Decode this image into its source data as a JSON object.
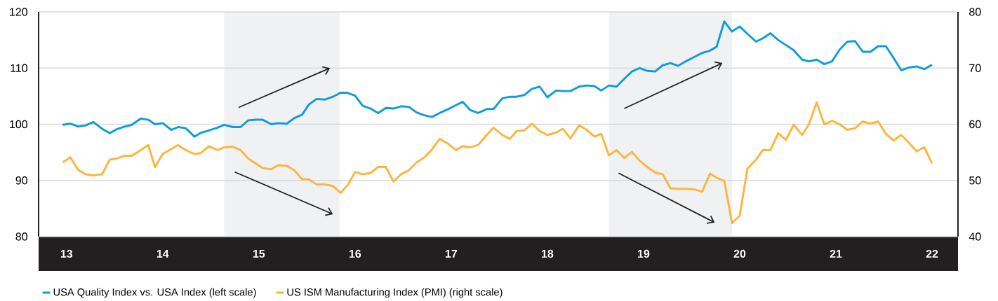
{
  "chart_data": {
    "type": "line",
    "xlim": [
      2012.71,
      2022.27
    ],
    "xticks": [
      {
        "value": 2013,
        "label": "13"
      },
      {
        "value": 2014,
        "label": "14"
      },
      {
        "value": 2015,
        "label": "15"
      },
      {
        "value": 2016,
        "label": "16"
      },
      {
        "value": 2017,
        "label": "17"
      },
      {
        "value": 2018,
        "label": "18"
      },
      {
        "value": 2019,
        "label": "19"
      },
      {
        "value": 2020,
        "label": "20"
      },
      {
        "value": 2021,
        "label": "21"
      },
      {
        "value": 2022,
        "label": "22"
      }
    ],
    "ylim": [
      80,
      120
    ],
    "yticks": [
      80,
      90,
      100,
      110,
      120
    ],
    "y2lim": [
      40,
      80
    ],
    "y2ticks": [
      40,
      50,
      60,
      70,
      80
    ],
    "grid": "y",
    "legend": "bottom",
    "bands": [
      {
        "axis": "x",
        "from": 2014.64,
        "to": 2015.84,
        "color": "#f0f1f3"
      },
      {
        "axis": "x",
        "from": 2018.64,
        "to": 2019.92,
        "color": "#f0f1f3"
      }
    ],
    "series": [
      {
        "name": "USA Quality Index vs. USA Index (left scale)",
        "color": "#0d9ddb",
        "axis": "y",
        "x": [
          2012.96,
          2013.04,
          2013.12,
          2013.2,
          2013.28,
          2013.37,
          2013.45,
          2013.52,
          2013.61,
          2013.68,
          2013.77,
          2013.85,
          2013.92,
          2014.0,
          2014.09,
          2014.16,
          2014.24,
          2014.33,
          2014.4,
          2014.48,
          2014.57,
          2014.64,
          2014.73,
          2014.81,
          2014.89,
          2014.97,
          2015.04,
          2015.13,
          2015.2,
          2015.29,
          2015.37,
          2015.45,
          2015.52,
          2015.6,
          2015.69,
          2015.77,
          2015.85,
          2015.92,
          2016.0,
          2016.08,
          2016.16,
          2016.24,
          2016.32,
          2016.4,
          2016.48,
          2016.56,
          2016.64,
          2016.72,
          2016.8,
          2016.88,
          2016.97,
          2017.05,
          2017.12,
          2017.2,
          2017.28,
          2017.37,
          2017.44,
          2017.53,
          2017.61,
          2017.68,
          2017.76,
          2017.84,
          2017.92,
          2018.0,
          2018.09,
          2018.16,
          2018.24,
          2018.33,
          2018.41,
          2018.49,
          2018.56,
          2018.64,
          2018.72,
          2018.8,
          2018.88,
          2018.96,
          2019.04,
          2019.12,
          2019.2,
          2019.28,
          2019.36,
          2019.45,
          2019.53,
          2019.61,
          2019.69,
          2019.76,
          2019.84,
          2019.92,
          2020.0,
          2020.08,
          2020.17,
          2020.24,
          2020.32,
          2020.4,
          2020.48,
          2020.56,
          2020.65,
          2020.72,
          2020.8,
          2020.88,
          2020.96,
          2021.04,
          2021.12,
          2021.2,
          2021.28,
          2021.36,
          2021.44,
          2021.52,
          2021.6,
          2021.68,
          2021.76,
          2021.84,
          2021.92,
          2022.0
        ],
        "values": [
          99.9,
          100.1,
          99.6,
          99.8,
          100.4,
          99.2,
          98.4,
          99.1,
          99.6,
          99.9,
          101.0,
          100.8,
          100.0,
          100.2,
          99.0,
          99.5,
          99.3,
          97.8,
          98.5,
          98.9,
          99.4,
          99.9,
          99.5,
          99.5,
          100.7,
          100.8,
          100.8,
          100.0,
          100.2,
          100.1,
          101.1,
          101.7,
          103.5,
          104.5,
          104.4,
          104.9,
          105.6,
          105.6,
          105.1,
          103.3,
          102.8,
          102.0,
          102.9,
          102.8,
          103.2,
          103.1,
          102.1,
          101.6,
          101.3,
          102.0,
          102.7,
          103.4,
          104.0,
          102.5,
          102.0,
          102.7,
          102.7,
          104.6,
          104.9,
          104.9,
          105.2,
          106.3,
          106.7,
          104.8,
          106.0,
          105.9,
          105.9,
          106.7,
          106.9,
          106.8,
          106.0,
          106.9,
          106.7,
          108.1,
          109.4,
          110.0,
          109.5,
          109.4,
          110.5,
          110.9,
          110.4,
          111.3,
          112.0,
          112.7,
          113.1,
          113.8,
          118.3,
          116.5,
          117.4,
          116.1,
          114.7,
          115.3,
          116.2,
          115.0,
          114.1,
          113.2,
          111.5,
          111.2,
          111.5,
          110.7,
          111.2,
          113.3,
          114.7,
          114.8,
          112.9,
          112.9,
          113.9,
          113.9,
          111.8,
          109.6,
          110.1,
          110.3,
          109.8,
          110.6
        ]
      },
      {
        "name": "US ISM Manufacturing Index (PMI) (right scale)",
        "color": "#fdb53c",
        "axis": "y2",
        "x": [
          2012.96,
          2013.04,
          2013.12,
          2013.2,
          2013.28,
          2013.37,
          2013.45,
          2013.52,
          2013.61,
          2013.68,
          2013.77,
          2013.85,
          2013.92,
          2014.0,
          2014.09,
          2014.16,
          2014.24,
          2014.33,
          2014.4,
          2014.48,
          2014.57,
          2014.64,
          2014.73,
          2014.81,
          2014.89,
          2014.97,
          2015.04,
          2015.13,
          2015.2,
          2015.29,
          2015.37,
          2015.45,
          2015.52,
          2015.6,
          2015.69,
          2015.77,
          2015.85,
          2015.93,
          2016.0,
          2016.08,
          2016.16,
          2016.24,
          2016.32,
          2016.4,
          2016.48,
          2016.56,
          2016.64,
          2016.72,
          2016.8,
          2016.88,
          2016.97,
          2017.05,
          2017.12,
          2017.2,
          2017.28,
          2017.37,
          2017.44,
          2017.53,
          2017.61,
          2017.68,
          2017.76,
          2017.84,
          2017.92,
          2018.0,
          2018.09,
          2018.16,
          2018.24,
          2018.33,
          2018.41,
          2018.49,
          2018.56,
          2018.64,
          2018.72,
          2018.8,
          2018.88,
          2018.96,
          2019.04,
          2019.12,
          2019.2,
          2019.28,
          2019.36,
          2019.45,
          2019.53,
          2019.61,
          2019.69,
          2019.76,
          2019.84,
          2019.92,
          2020.0,
          2020.08,
          2020.17,
          2020.24,
          2020.32,
          2020.4,
          2020.48,
          2020.56,
          2020.65,
          2020.72,
          2020.8,
          2020.88,
          2020.96,
          2021.04,
          2021.12,
          2021.2,
          2021.28,
          2021.36,
          2021.44,
          2021.52,
          2021.6,
          2021.68,
          2021.76,
          2021.84,
          2021.92,
          2022.0
        ],
        "values": [
          53.2,
          54.1,
          51.9,
          51.1,
          50.9,
          51.1,
          53.7,
          53.9,
          54.4,
          54.4,
          55.4,
          56.3,
          52.4,
          54.7,
          55.6,
          56.3,
          55.4,
          54.7,
          54.9,
          56.1,
          55.4,
          55.9,
          56.0,
          55.4,
          53.9,
          53.0,
          52.2,
          52.0,
          52.7,
          52.6,
          51.8,
          50.2,
          50.2,
          49.3,
          49.3,
          49.0,
          47.8,
          49.3,
          51.5,
          51.1,
          51.3,
          52.4,
          52.4,
          49.8,
          51.1,
          51.8,
          53.2,
          54.1,
          55.5,
          57.4,
          56.5,
          55.4,
          56.1,
          55.9,
          56.3,
          58.1,
          59.4,
          58.1,
          57.4,
          58.8,
          58.9,
          60.1,
          58.8,
          58.1,
          58.5,
          59.2,
          57.5,
          59.8,
          59.0,
          57.8,
          58.3,
          54.5,
          55.4,
          54.0,
          55.1,
          53.5,
          52.4,
          51.4,
          51.1,
          48.6,
          48.5,
          48.5,
          48.4,
          48.0,
          51.2,
          50.5,
          49.9,
          42.4,
          43.7,
          52.1,
          53.7,
          55.4,
          55.4,
          58.4,
          57.2,
          59.9,
          58.1,
          60.0,
          63.9,
          60.0,
          60.6,
          60.0,
          59.0,
          59.3,
          60.5,
          60.1,
          60.5,
          58.3,
          57.1,
          58.1,
          56.7,
          55.2,
          55.9,
          53.0
        ]
      }
    ]
  }
}
